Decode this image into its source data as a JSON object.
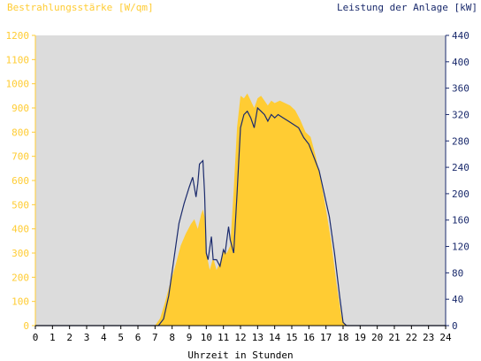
{
  "chart_data": {
    "type": "area",
    "left_axis_label": "Bestrahlungsstärke [W/qm]",
    "right_axis_label": "Leistung der Anlage [kW]",
    "xlabel": "Uhrzeit in Stunden",
    "xlim": [
      0,
      24
    ],
    "x_ticks": [
      "0",
      "1",
      "2",
      "3",
      "4",
      "5",
      "6",
      "7",
      "8",
      "9",
      "10",
      "11",
      "12",
      "13",
      "14",
      "15",
      "16",
      "17",
      "18",
      "19",
      "20",
      "21",
      "22",
      "23",
      "24"
    ],
    "y_left_lim": [
      0,
      1200
    ],
    "y_left_ticks": [
      "0",
      "100",
      "200",
      "300",
      "400",
      "500",
      "600",
      "700",
      "800",
      "900",
      "1000",
      "1100",
      "1200"
    ],
    "y_right_lim": [
      0,
      440
    ],
    "y_right_ticks": [
      "0",
      "40",
      "80",
      "120",
      "160",
      "200",
      "240",
      "280",
      "320",
      "360",
      "400",
      "440"
    ],
    "grid": false,
    "colors": {
      "plot_background": "#dcdcdc",
      "irradiance_fill": "#ffcc33",
      "power_line": "#1a2a6c",
      "left_axis_text": "#ffcc33",
      "right_axis_text": "#1a2a6c",
      "x_axis_text": "#000000"
    },
    "series": [
      {
        "axis": "left",
        "style": "area",
        "x": [
          0,
          7.0,
          7.3,
          7.6,
          7.9,
          8.2,
          8.5,
          8.8,
          9.1,
          9.3,
          9.5,
          9.7,
          9.8,
          9.9,
          10.0,
          10.2,
          10.4,
          10.6,
          10.8,
          11.0,
          11.2,
          11.4,
          11.6,
          11.8,
          12.0,
          12.2,
          12.4,
          12.6,
          12.8,
          13.0,
          13.2,
          13.4,
          13.6,
          13.8,
          14.0,
          14.3,
          14.6,
          14.9,
          15.2,
          15.5,
          15.8,
          16.1,
          16.4,
          16.7,
          17.0,
          17.3,
          17.6,
          17.9,
          18.1,
          18.3,
          24
        ],
        "y": [
          0,
          0,
          30,
          100,
          180,
          250,
          330,
          380,
          420,
          440,
          400,
          460,
          480,
          450,
          300,
          230,
          280,
          230,
          260,
          310,
          300,
          330,
          560,
          820,
          950,
          940,
          960,
          930,
          900,
          940,
          950,
          930,
          910,
          930,
          920,
          930,
          920,
          910,
          890,
          850,
          800,
          780,
          700,
          600,
          480,
          350,
          180,
          40,
          5,
          0,
          0
        ]
      },
      {
        "axis": "right",
        "style": "line",
        "x": [
          0,
          7.2,
          7.5,
          7.8,
          8.1,
          8.4,
          8.7,
          9.0,
          9.2,
          9.4,
          9.5,
          9.6,
          9.8,
          9.9,
          10.0,
          10.1,
          10.3,
          10.4,
          10.5,
          10.6,
          10.8,
          11.0,
          11.1,
          11.3,
          11.4,
          11.6,
          11.8,
          12.0,
          12.2,
          12.4,
          12.6,
          12.8,
          13.0,
          13.2,
          13.4,
          13.6,
          13.8,
          14.0,
          14.2,
          14.5,
          14.8,
          15.1,
          15.4,
          15.7,
          16.0,
          16.3,
          16.6,
          16.9,
          17.2,
          17.5,
          17.8,
          18.0,
          18.2,
          24
        ],
        "y": [
          0,
          0,
          10,
          45,
          100,
          155,
          185,
          210,
          225,
          195,
          215,
          245,
          250,
          200,
          110,
          100,
          135,
          100,
          100,
          100,
          90,
          115,
          110,
          150,
          130,
          110,
          200,
          300,
          320,
          325,
          315,
          300,
          330,
          325,
          320,
          310,
          320,
          315,
          320,
          315,
          310,
          305,
          300,
          285,
          275,
          255,
          235,
          200,
          165,
          110,
          45,
          5,
          0,
          0
        ]
      }
    ]
  }
}
